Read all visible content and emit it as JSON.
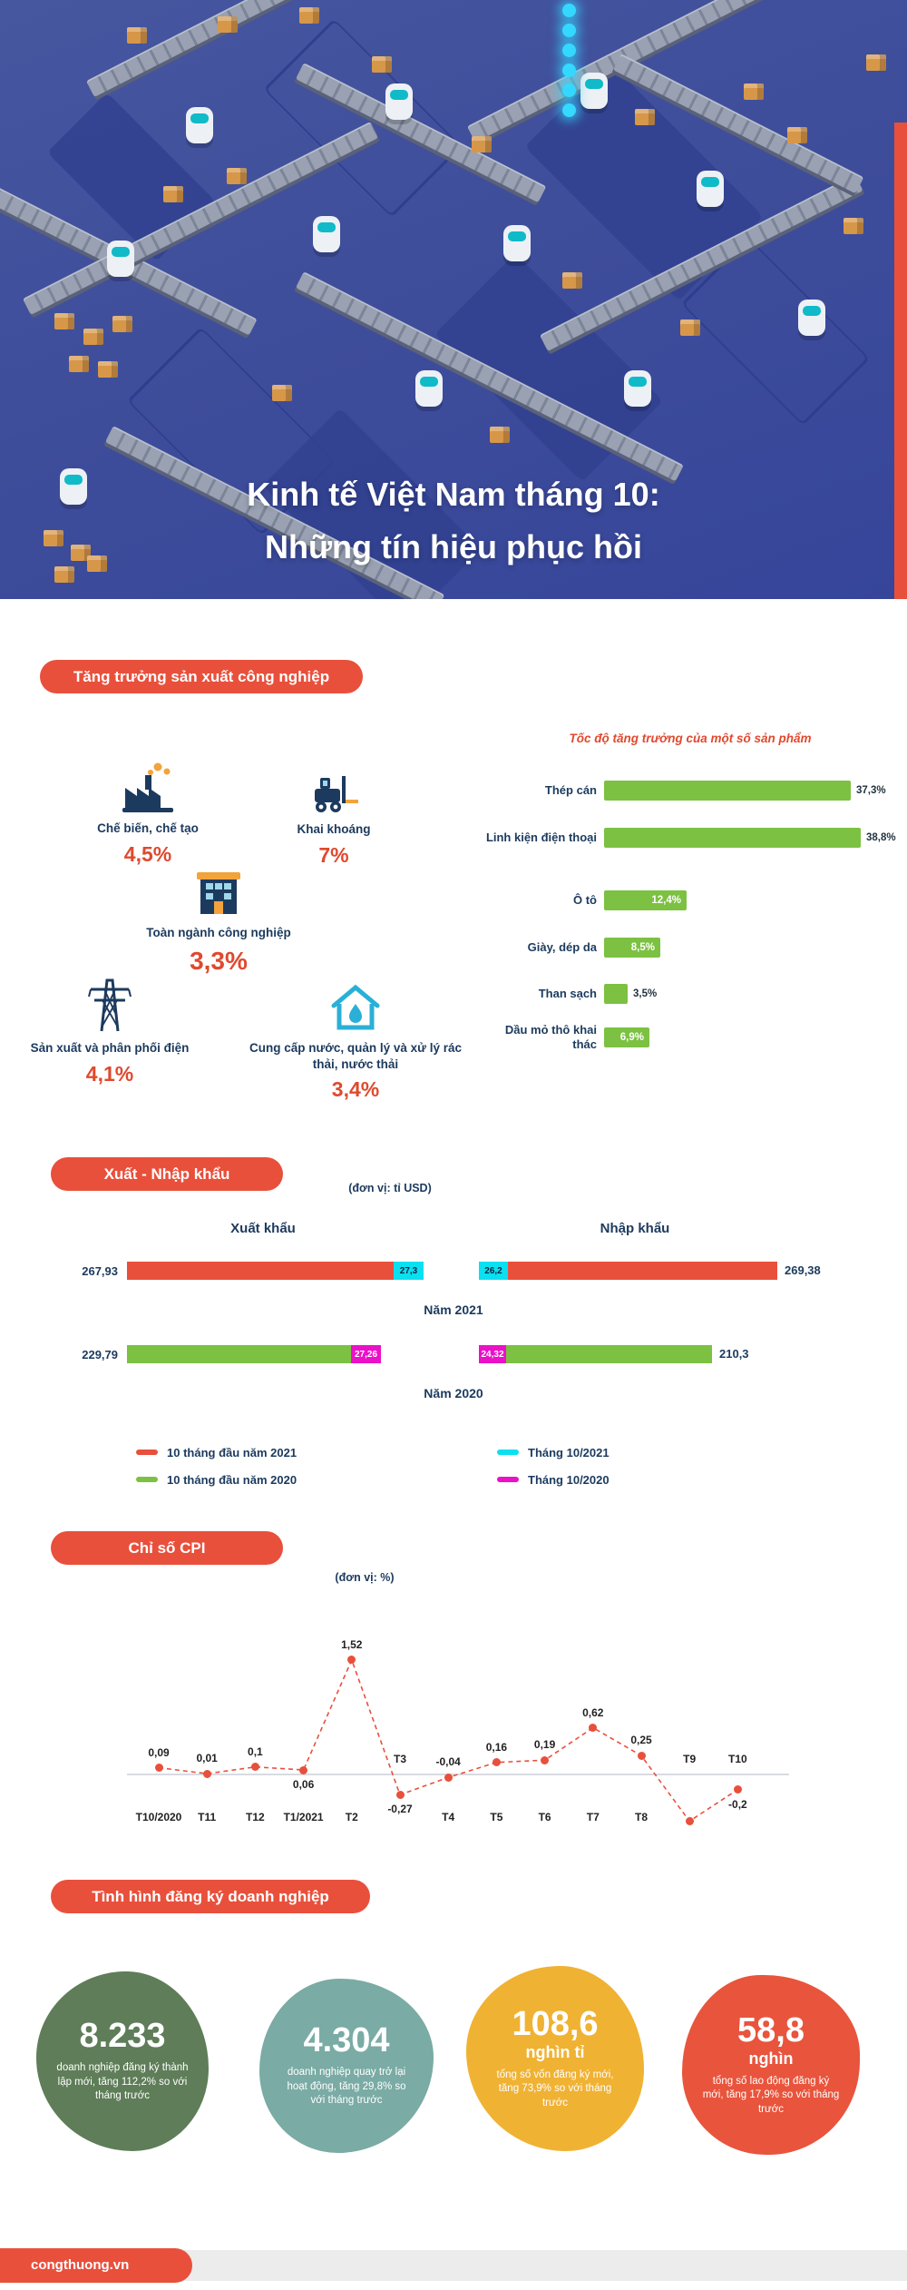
{
  "hero": {
    "title_line1": "Kinh tế Việt Nam tháng 10:",
    "title_line2": "Những tín hiệu phục hồi"
  },
  "industry": {
    "heading": "Tăng trưởng sản xuất công nghiệp",
    "items": [
      {
        "icon": "factory-icon",
        "label": "Chế biến, chế tạo",
        "value": "4,5%"
      },
      {
        "icon": "mining-forklift-icon",
        "label": "Khai khoáng",
        "value": "7%"
      },
      {
        "icon": "industry-building-icon",
        "label": "Toàn ngành công nghiệp",
        "value": "3,3%"
      },
      {
        "icon": "power-pylon-icon",
        "label": "Sản xuất và phân phối điện",
        "value": "4,1%"
      },
      {
        "icon": "water-supply-icon",
        "label": "Cung cấp nước, quản lý và xử lý rác thải, nước thải",
        "value": "3,4%"
      }
    ]
  },
  "business": {
    "heading": "Tình hình đăng ký doanh nghiệp",
    "stats": [
      {
        "value": "8.233",
        "unit": "",
        "desc": "doanh nghiệp đăng ký thành lập mới, tăng 112,2% so với tháng trước",
        "color": "#5e7d58"
      },
      {
        "value": "4.304",
        "unit": "",
        "desc": "doanh nghiệp quay trở lại hoạt động, tăng 29,8% so với tháng trước",
        "color": "#7aaba5"
      },
      {
        "value": "108,6",
        "unit": "nghìn tỉ",
        "desc": "tổng số vốn đăng ký mới, tăng 73,9% so với tháng trước",
        "color": "#f0b233"
      },
      {
        "value": "58,8",
        "unit": "nghìn",
        "desc": "tổng số lao động đăng ký mới, tăng 17,9% so với tháng trước",
        "color": "#e9543c"
      }
    ]
  },
  "footer": {
    "source": "congthuong.vn"
  },
  "chart_data": [
    {
      "id": "product-growth",
      "type": "bar",
      "title": "Tốc độ tăng trưởng của một số sản phẩm",
      "categories": [
        "Thép cán",
        "Linh kiện điện thoại",
        "Ô tô",
        "Giày, dép da",
        "Than sạch",
        "Dầu mỏ thô khai thác"
      ],
      "values": [
        37.3,
        38.8,
        12.4,
        8.5,
        3.5,
        6.9
      ],
      "value_labels": [
        "37,3%",
        "38,8%",
        "12,4%",
        "8,5%",
        "3,5%",
        "6,9%"
      ],
      "label_placement": [
        "outside",
        "outside",
        "inside",
        "inside",
        "outside",
        "inside"
      ],
      "xlim": [
        0,
        40
      ],
      "bar_color": "#7cc142"
    },
    {
      "id": "trade",
      "type": "bar",
      "title": "Xuất - Nhập khẩu",
      "unit_note": "(đơn vị: tỉ USD)",
      "col_headers": [
        "Xuất khẩu",
        "Nhập khẩu"
      ],
      "groups": [
        {
          "year": "Năm 2021",
          "export_total": 267.93,
          "export_total_label": "267,93",
          "export_month": 27.3,
          "export_month_label": "27,3",
          "import_total": 269.38,
          "import_total_label": "269,38",
          "import_month": 26.2,
          "import_month_label": "26,2",
          "bar_color": "#e8503c",
          "month_color": "#0ae0f0"
        },
        {
          "year": "Năm 2020",
          "export_total": 229.79,
          "export_total_label": "229,79",
          "export_month": 27.26,
          "export_month_label": "27,26",
          "import_total": 210.3,
          "import_total_label": "210,3",
          "import_month": 24.32,
          "import_month_label": "24,32",
          "bar_color": "#7cc142",
          "month_color": "#ea11c8"
        }
      ],
      "legend": [
        {
          "label": "10 tháng đầu năm 2021",
          "color": "#e8503c"
        },
        {
          "label": "10 tháng đầu năm 2020",
          "color": "#7cc142"
        },
        {
          "label": "Tháng 10/2021",
          "color": "#0ae0f0"
        },
        {
          "label": "Tháng 10/2020",
          "color": "#ea11c8"
        }
      ]
    },
    {
      "id": "cpi",
      "type": "line",
      "title": "Chỉ số CPI",
      "unit_note": "(đơn vị: %)",
      "x": [
        "T10/2020",
        "T11",
        "T12",
        "T1/2021",
        "T2",
        "T3",
        "T4",
        "T5",
        "T6",
        "T7",
        "T8",
        "T9",
        "T10"
      ],
      "y": [
        0.09,
        0.01,
        0.1,
        0.06,
        1.52,
        -0.27,
        -0.04,
        0.16,
        0.19,
        0.62,
        0.25,
        -0.62,
        -0.2
      ],
      "point_labels": [
        "0,09",
        "0,01",
        "0,1",
        "0,06",
        "1,52",
        "-0,27",
        "-0,04",
        "0,16",
        "0,19",
        "0,62",
        "0,25",
        "",
        "-0,2"
      ],
      "label_side": [
        "above",
        "above",
        "above",
        "below",
        "above",
        "below",
        "above",
        "above",
        "above",
        "above",
        "above",
        "none",
        "below"
      ],
      "month_side": [
        "bottom",
        "bottom",
        "bottom",
        "bottom",
        "bottom",
        "top",
        "bottom",
        "bottom",
        "bottom",
        "bottom",
        "bottom",
        "top",
        "top"
      ],
      "line_color": "#e8503c",
      "ylim": [
        -0.8,
        1.8
      ]
    }
  ]
}
